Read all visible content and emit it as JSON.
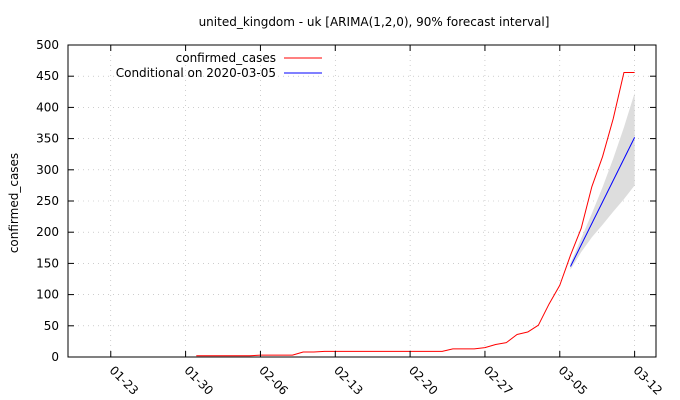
{
  "chart_data": {
    "type": "line",
    "title": "united_kingdom - uk [ARIMA(1,2,0), 90% forecast interval]",
    "xlabel": "",
    "ylabel": "confirmed_cases",
    "xlim": [
      "2020-01-19",
      "2020-03-14"
    ],
    "ylim": [
      0,
      500
    ],
    "yticks": [
      0,
      50,
      100,
      150,
      200,
      250,
      300,
      350,
      400,
      450,
      500
    ],
    "xticks": [
      "01-23",
      "01-30",
      "02-06",
      "02-13",
      "02-20",
      "02-27",
      "03-05",
      "03-12"
    ],
    "xtick_dates": [
      "2020-01-23",
      "2020-01-30",
      "2020-02-06",
      "2020-02-13",
      "2020-02-20",
      "2020-02-27",
      "2020-03-05",
      "2020-03-12"
    ],
    "grid": true,
    "legend_position": "top-left",
    "series": [
      {
        "name": "confirmed_cases",
        "color": "#ff0000",
        "points": [
          [
            "2020-01-31",
            2
          ],
          [
            "2020-02-01",
            2
          ],
          [
            "2020-02-02",
            2
          ],
          [
            "2020-02-03",
            2
          ],
          [
            "2020-02-04",
            2
          ],
          [
            "2020-02-05",
            2
          ],
          [
            "2020-02-06",
            3
          ],
          [
            "2020-02-07",
            3
          ],
          [
            "2020-02-08",
            3
          ],
          [
            "2020-02-09",
            3
          ],
          [
            "2020-02-10",
            8
          ],
          [
            "2020-02-11",
            8
          ],
          [
            "2020-02-12",
            9
          ],
          [
            "2020-02-13",
            9
          ],
          [
            "2020-02-14",
            9
          ],
          [
            "2020-02-15",
            9
          ],
          [
            "2020-02-16",
            9
          ],
          [
            "2020-02-17",
            9
          ],
          [
            "2020-02-18",
            9
          ],
          [
            "2020-02-19",
            9
          ],
          [
            "2020-02-20",
            9
          ],
          [
            "2020-02-21",
            9
          ],
          [
            "2020-02-22",
            9
          ],
          [
            "2020-02-23",
            9
          ],
          [
            "2020-02-24",
            13
          ],
          [
            "2020-02-25",
            13
          ],
          [
            "2020-02-26",
            13
          ],
          [
            "2020-02-27",
            15
          ],
          [
            "2020-02-28",
            20
          ],
          [
            "2020-02-29",
            23
          ],
          [
            "2020-03-01",
            36
          ],
          [
            "2020-03-02",
            40
          ],
          [
            "2020-03-03",
            51
          ],
          [
            "2020-03-04",
            85
          ],
          [
            "2020-03-05",
            115
          ],
          [
            "2020-03-06",
            163
          ],
          [
            "2020-03-07",
            206
          ],
          [
            "2020-03-08",
            273
          ],
          [
            "2020-03-09",
            321
          ],
          [
            "2020-03-10",
            382
          ],
          [
            "2020-03-11",
            456
          ],
          [
            "2020-03-12",
            456
          ]
        ]
      },
      {
        "name": "Conditional on 2020-03-05",
        "color": "#0000ff",
        "points": [
          [
            "2020-03-06",
            145
          ],
          [
            "2020-03-12",
            352
          ]
        ],
        "interval_color": "#dddddd",
        "interval": [
          [
            "2020-03-06",
            140,
            150
          ],
          [
            "2020-03-07",
            168,
            190
          ],
          [
            "2020-03-08",
            192,
            230
          ],
          [
            "2020-03-09",
            212,
            272
          ],
          [
            "2020-03-10",
            233,
            318
          ],
          [
            "2020-03-11",
            253,
            368
          ],
          [
            "2020-03-12",
            275,
            423
          ]
        ]
      }
    ]
  }
}
